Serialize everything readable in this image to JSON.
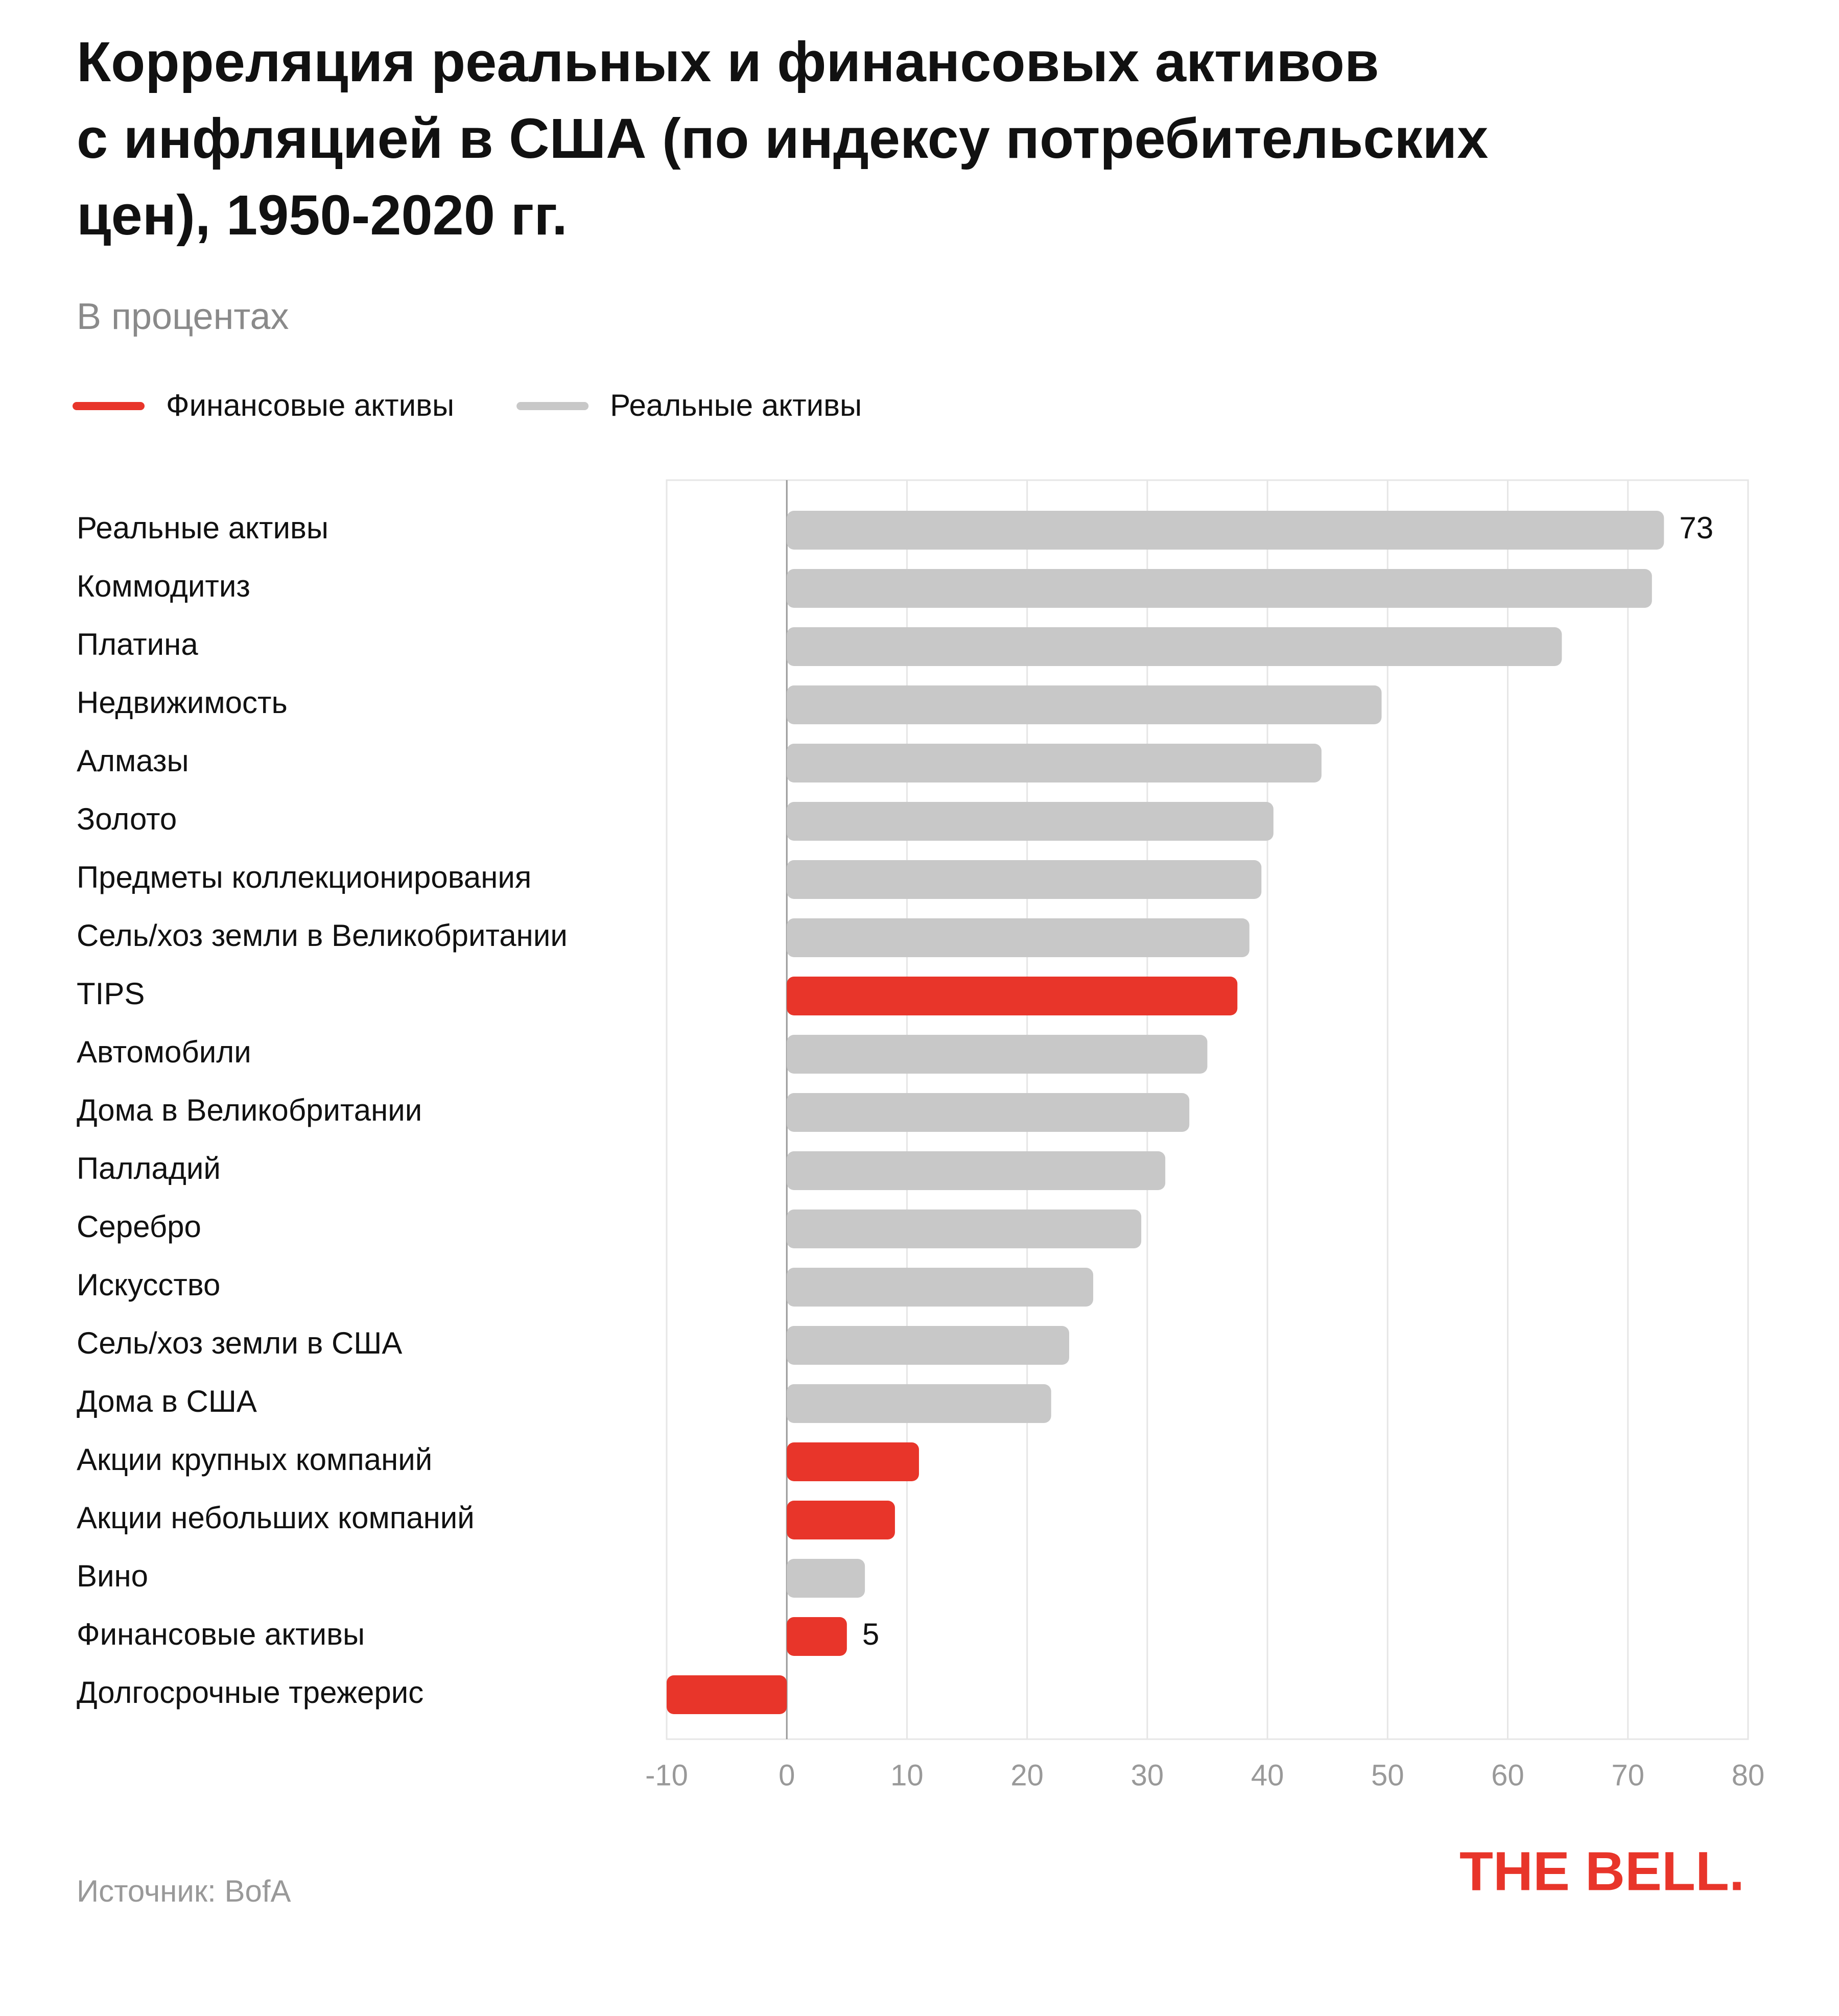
{
  "chart_data": {
    "type": "bar",
    "title": [
      "Корреляция реальных и финансовых активов",
      "с инфляцией в США (по индексу потребительских",
      "цен), 1950-2020 гг."
    ],
    "subtitle": "В процентах",
    "legend": [
      {
        "name": "Финансовые активы",
        "color": "#e8352a"
      },
      {
        "name": "Реальные активы",
        "color": "#c8c8c8"
      }
    ],
    "categories": [
      "Реальные активы",
      "Коммодитиз",
      "Платина",
      "Недвижимость",
      "Алмазы",
      "Золото",
      "Предметы коллекционирования",
      "Сель/хоз земли в Великобритании",
      "TIPS",
      "Автомобили",
      "Дома в Великобритании",
      "Палладий",
      "Серебро",
      "Искусство",
      "Сель/хоз земли в США",
      "Дома в США",
      "Акции крупных компаний",
      "Акции небольших компаний",
      "Вино",
      "Финансовые активы",
      "Долгосрочные трежерис"
    ],
    "values": [
      73,
      72,
      64.5,
      49.5,
      44.5,
      40.5,
      39.5,
      38.5,
      37.5,
      35,
      33.5,
      31.5,
      29.5,
      25.5,
      23.5,
      22,
      11,
      9,
      6.5,
      5,
      -10
    ],
    "value_labels": [
      "73",
      null,
      null,
      null,
      null,
      null,
      null,
      null,
      null,
      null,
      null,
      null,
      null,
      null,
      null,
      null,
      null,
      null,
      null,
      "5",
      null
    ],
    "colors": [
      "#c8c8c8",
      "#c8c8c8",
      "#c8c8c8",
      "#c8c8c8",
      "#c8c8c8",
      "#c8c8c8",
      "#c8c8c8",
      "#c8c8c8",
      "#e8352a",
      "#c8c8c8",
      "#c8c8c8",
      "#c8c8c8",
      "#c8c8c8",
      "#c8c8c8",
      "#c8c8c8",
      "#c8c8c8",
      "#e8352a",
      "#e8352a",
      "#c8c8c8",
      "#e8352a",
      "#e8352a"
    ],
    "xlim": [
      -10,
      80
    ],
    "xticks": [
      -10,
      0,
      10,
      20,
      30,
      40,
      50,
      60,
      70,
      80
    ],
    "grid": true,
    "source": "Источник: BofA",
    "logo": "THE BELL."
  }
}
